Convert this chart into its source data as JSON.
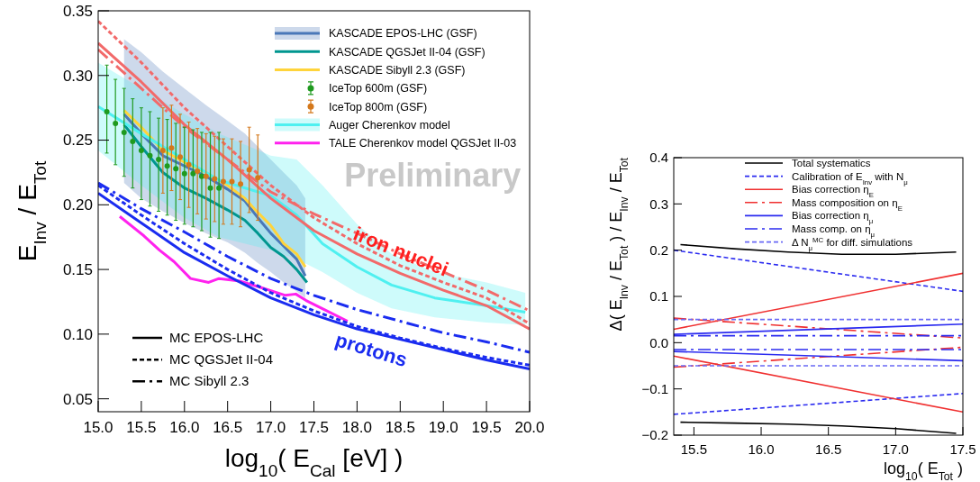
{
  "chart_data": [
    {
      "type": "line",
      "xlabel": "log$_{10}$( E$_{Cal}$ [eV] )",
      "ylabel": "E$_{Inv}$ / E$_{Tot}$",
      "xlim": [
        15,
        20
      ],
      "ylim": [
        0.04,
        0.35
      ],
      "xticks": [
        {
          "value": 15,
          "label": "15.0"
        },
        15.5,
        {
          "value": 16,
          "label": "16.0"
        },
        16.5,
        {
          "value": 17,
          "label": "17.0"
        },
        17.5,
        {
          "value": 18,
          "label": "18.0"
        },
        18.5,
        {
          "value": 19,
          "label": "19.0"
        },
        19.5,
        {
          "value": 20,
          "label": "20.0"
        }
      ],
      "yticks": [
        0.05,
        {
          "value": 0.1,
          "label": "0.10"
        },
        0.15,
        {
          "value": 0.2,
          "label": "0.20"
        },
        0.25,
        {
          "value": 0.3,
          "label": "0.30"
        },
        0.35
      ],
      "legend": "top right",
      "annotations": [
        "Preliminary",
        {
          "text": "iron nuclei",
          "x": 18.51,
          "y": 0.164
        },
        "protons",
        "MC EPOS-LHC",
        "MC QGSJet II-04",
        "MC Sibyll 2.3"
      ],
      "series": [
        {
          "name": "KASCADE EPOS-LHC (GSF)",
          "color": "#4a78b8",
          "x": [
            15.3,
            15.5,
            15.75,
            16.0,
            16.25,
            16.5,
            16.7,
            16.85,
            17.0,
            17.15,
            17.3,
            17.4
          ],
          "values": [
            0.27,
            0.255,
            0.238,
            0.23,
            0.222,
            0.212,
            0.203,
            0.19,
            0.178,
            0.168,
            0.158,
            0.145
          ],
          "lower": [
            0.217,
            0.205,
            0.195,
            0.186,
            0.178,
            0.171,
            0.163,
            0.155,
            0.148,
            0.14,
            0.133,
            0.128
          ],
          "upper": [
            0.328,
            0.318,
            0.303,
            0.29,
            0.277,
            0.265,
            0.255,
            0.245,
            0.235,
            0.225,
            0.215,
            0.205
          ]
        },
        {
          "name": "KASCADE QGSJet II-04 (GSF)",
          "color": "#00968f",
          "x": [
            15.3,
            15.5,
            15.75,
            16.0,
            16.25,
            16.5,
            16.7,
            16.85,
            17.0,
            17.15,
            17.3,
            17.42
          ],
          "values": [
            0.262,
            0.245,
            0.225,
            0.213,
            0.205,
            0.196,
            0.188,
            0.178,
            0.167,
            0.16,
            0.15,
            0.14
          ]
        },
        {
          "name": "KASCADE Sibyll 2.3 (GSF)",
          "color": "#ffd43b",
          "x": [
            15.3,
            15.5,
            15.75,
            16.0,
            16.25,
            16.5,
            16.7,
            16.85,
            17.0,
            17.15,
            17.3,
            17.4
          ],
          "values": [
            0.273,
            0.26,
            0.242,
            0.233,
            0.225,
            0.215,
            0.205,
            0.194,
            0.184,
            0.17,
            0.162,
            0.152
          ]
        },
        {
          "name": "IceTop 600m (GSF)",
          "type": "scatter",
          "marker": "circle",
          "color": "#1f9a1f",
          "x": [
            15.1,
            15.2,
            15.3,
            15.4,
            15.5,
            15.6,
            15.7,
            15.8,
            15.9,
            16.0,
            16.1,
            16.2,
            16.3,
            16.4
          ],
          "values": [
            0.272,
            0.263,
            0.256,
            0.249,
            0.242,
            0.238,
            0.235,
            0.23,
            0.228,
            0.224,
            0.224,
            0.222,
            0.213,
            0.213
          ],
          "errors": [
            [
              0.24,
              0.308
            ],
            [
              0.231,
              0.297
            ],
            [
              0.222,
              0.29
            ],
            [
              0.213,
              0.282
            ],
            [
              0.204,
              0.275
            ],
            [
              0.199,
              0.272
            ],
            [
              0.195,
              0.267
            ],
            [
              0.192,
              0.266
            ],
            [
              0.188,
              0.263
            ],
            [
              0.185,
              0.26
            ],
            [
              0.183,
              0.258
            ],
            [
              0.18,
              0.256
            ],
            [
              0.175,
              0.256
            ],
            [
              0.174,
              0.256
            ]
          ]
        },
        {
          "name": "IceTop 800m (GSF)",
          "type": "scatter",
          "marker": "circle",
          "color": "#d4781c",
          "x": [
            15.75,
            15.85,
            15.95,
            16.05,
            16.15,
            16.25,
            16.35,
            16.45,
            16.55,
            16.65,
            16.75,
            16.85
          ],
          "values": [
            0.242,
            0.244,
            0.237,
            0.231,
            0.226,
            0.222,
            0.22,
            0.218,
            0.218,
            0.216,
            0.227,
            0.221
          ],
          "errors": [
            0.033,
            0.033,
            0.033,
            0.033,
            0.033,
            0.033,
            0.033,
            0.033,
            0.033,
            0.033,
            0.033,
            0.033
          ]
        },
        {
          "name": "Auger Cherenkov model",
          "color": "#4ff0f0",
          "x": [
            15.0,
            15.5,
            16.0,
            16.4,
            17.0,
            17.3,
            17.6,
            18.0,
            18.4,
            18.9,
            19.5,
            19.95
          ],
          "values": [
            0.276,
            0.255,
            0.235,
            0.219,
            0.207,
            0.192,
            0.17,
            0.152,
            0.138,
            0.128,
            0.122,
            0.117
          ],
          "lower": [
            0.242,
            0.215,
            0.19,
            0.175,
            0.165,
            0.158,
            0.148,
            0.132,
            0.12,
            0.113,
            0.109,
            0.107
          ],
          "upper": [
            0.31,
            0.29,
            0.27,
            0.255,
            0.238,
            0.235,
            0.215,
            0.185,
            0.162,
            0.148,
            0.14,
            0.132
          ]
        },
        {
          "name": "TALE Cherenkov model QGSJet II-03",
          "color": "#ff22ee",
          "x": [
            15.25,
            15.53,
            15.71,
            15.88,
            16.07,
            16.28,
            16.4,
            16.64,
            16.89,
            17.17,
            17.29,
            17.41,
            17.62,
            17.89
          ],
          "values": [
            0.191,
            0.176,
            0.165,
            0.156,
            0.143,
            0.14,
            0.143,
            0.141,
            0.136,
            0.13,
            0.131,
            0.126,
            0.119,
            0.11
          ]
        },
        {
          "color": "#f26a6a",
          "line_style": "solid",
          "x": [
            15,
            15.5,
            16,
            16.5,
            17,
            17.5,
            18,
            18.5,
            19,
            19.5,
            20
          ],
          "values": [
            0.325,
            0.295,
            0.262,
            0.235,
            0.205,
            0.18,
            0.162,
            0.147,
            0.134,
            0.122,
            0.104
          ]
        },
        {
          "color": "#f26a6a",
          "line_style": "dotted",
          "x": [
            15,
            15.5,
            16,
            16.5,
            17,
            17.5,
            18,
            18.5,
            19,
            19.5,
            20
          ],
          "values": [
            0.342,
            0.31,
            0.275,
            0.245,
            0.215,
            0.19,
            0.17,
            0.153,
            0.14,
            0.128,
            0.108
          ]
        },
        {
          "color": "#f26a6a",
          "line_style": "dashed",
          "x": [
            15,
            15.5,
            16,
            16.5,
            17,
            17.5,
            18,
            18.5,
            19,
            19.5,
            20
          ],
          "values": [
            0.32,
            0.29,
            0.26,
            0.235,
            0.21,
            0.193,
            0.178,
            0.162,
            0.148,
            0.134,
            0.118
          ]
        },
        {
          "color": "#1a2cf0",
          "line_style": "solid",
          "x": [
            15,
            15.5,
            16,
            16.5,
            17,
            17.5,
            18,
            18.5,
            19,
            19.5,
            20
          ],
          "values": [
            0.209,
            0.186,
            0.163,
            0.145,
            0.128,
            0.115,
            0.104,
            0.096,
            0.088,
            0.08,
            0.073
          ]
        },
        {
          "color": "#1a2cf0",
          "line_style": "dotted",
          "x": [
            15,
            15.5,
            16,
            16.5,
            17,
            17.5,
            18,
            18.5,
            19,
            19.5,
            20
          ],
          "values": [
            0.215,
            0.192,
            0.17,
            0.15,
            0.132,
            0.118,
            0.106,
            0.097,
            0.089,
            0.082,
            0.076
          ]
        },
        {
          "color": "#1a2cf0",
          "line_style": "dashed",
          "x": [
            15,
            15.5,
            16,
            16.5,
            17,
            17.5,
            18,
            18.5,
            19,
            19.5,
            20
          ],
          "values": [
            0.217,
            0.197,
            0.179,
            0.16,
            0.143,
            0.13,
            0.119,
            0.11,
            0.101,
            0.094,
            0.086
          ]
        }
      ]
    },
    {
      "type": "line",
      "xlabel": "log$_{10}$( E$_{Tot}$ )",
      "ylabel": "Δ( E$_{Inv}$ / E$_{Tot}$ ) / E$_{Inv}$ / E$_{Tot}$",
      "xlim": [
        15.35,
        17.5
      ],
      "ylim": [
        -0.2,
        0.4
      ],
      "xticks": [
        15.5,
        {
          "value": 16,
          "label": "16.0"
        },
        16.5,
        {
          "value": 17,
          "label": "17.0"
        },
        17.5
      ],
      "yticks": [
        {
          "value": -0.2,
          "label": "−0.2"
        },
        {
          "value": -0.1,
          "label": "−0.1"
        },
        {
          "value": 0,
          "label": "0.0"
        },
        0.1,
        0.2,
        0.3,
        0.4
      ],
      "legend": "top right",
      "series": [
        {
          "name": "Total systematics",
          "color": "#000000",
          "line_style": "solid",
          "x": [
            15.4,
            15.8,
            16.2,
            16.6,
            17.0,
            17.45
          ],
          "values": [
            0.212,
            0.203,
            0.196,
            0.191,
            0.191,
            0.196
          ]
        },
        {
          "name": "Calibration of E$_{Inv}$ with N$_{μ}$",
          "color": "#2b2bf0",
          "line_style": "dotted",
          "x": [
            15.35,
            17.5
          ],
          "values": [
            0.2,
            0.111
          ]
        },
        {
          "name": "Bias correction η$_{E}$",
          "color": "#f03030",
          "line_style": "solid",
          "x": [
            15.35,
            17.5
          ],
          "values": [
            0.029,
            0.15
          ]
        },
        {
          "name": "Mass composition on η$_{E}$",
          "color": "#f03030",
          "line_style": "dashed",
          "x": [
            15.35,
            17.5
          ],
          "values": [
            0.053,
            0.01
          ]
        },
        {
          "name": "Bias correction η$_{μ}$",
          "color": "#2b2bf0",
          "line_style": "solid",
          "x": [
            15.35,
            17.5
          ],
          "values": [
            0.018,
            0.04
          ]
        },
        {
          "name": "Mass comp. on η$_{μ}$",
          "color": "#2b2bf0",
          "line_style": "dashed",
          "x": [
            15.35,
            17.5
          ],
          "values": [
            0.015,
            0.015
          ]
        },
        {
          "name": "Δ N$_{μ}$$^{MC}$ for diff. simulations",
          "color": "#6a6af5",
          "line_style": "dotted",
          "x": [
            15.35,
            17.5
          ],
          "values": [
            0.05,
            0.05
          ]
        },
        {
          "color": "#000000",
          "line_style": "solid",
          "x": [
            15.4,
            15.8,
            16.2,
            16.6,
            17.0,
            17.45
          ],
          "values": [
            -0.172,
            -0.174,
            -0.176,
            -0.18,
            -0.186,
            -0.196
          ]
        },
        {
          "color": "#2b2bf0",
          "line_style": "dotted",
          "x": [
            15.35,
            17.5
          ],
          "values": [
            -0.155,
            -0.11
          ]
        },
        {
          "color": "#f03030",
          "line_style": "solid",
          "x": [
            15.35,
            17.5
          ],
          "values": [
            -0.029,
            -0.15
          ]
        },
        {
          "color": "#f03030",
          "line_style": "dashed",
          "x": [
            15.35,
            17.5
          ],
          "values": [
            -0.053,
            -0.01
          ]
        },
        {
          "color": "#2b2bf0",
          "line_style": "solid",
          "x": [
            15.35,
            17.5
          ],
          "values": [
            -0.019,
            -0.039
          ]
        },
        {
          "color": "#2b2bf0",
          "line_style": "dashed",
          "x": [
            15.35,
            17.5
          ],
          "values": [
            -0.015,
            -0.015
          ]
        },
        {
          "color": "#6a6af5",
          "line_style": "dotted",
          "x": [
            15.35,
            17.5
          ],
          "values": [
            -0.05,
            -0.05
          ]
        }
      ]
    }
  ]
}
